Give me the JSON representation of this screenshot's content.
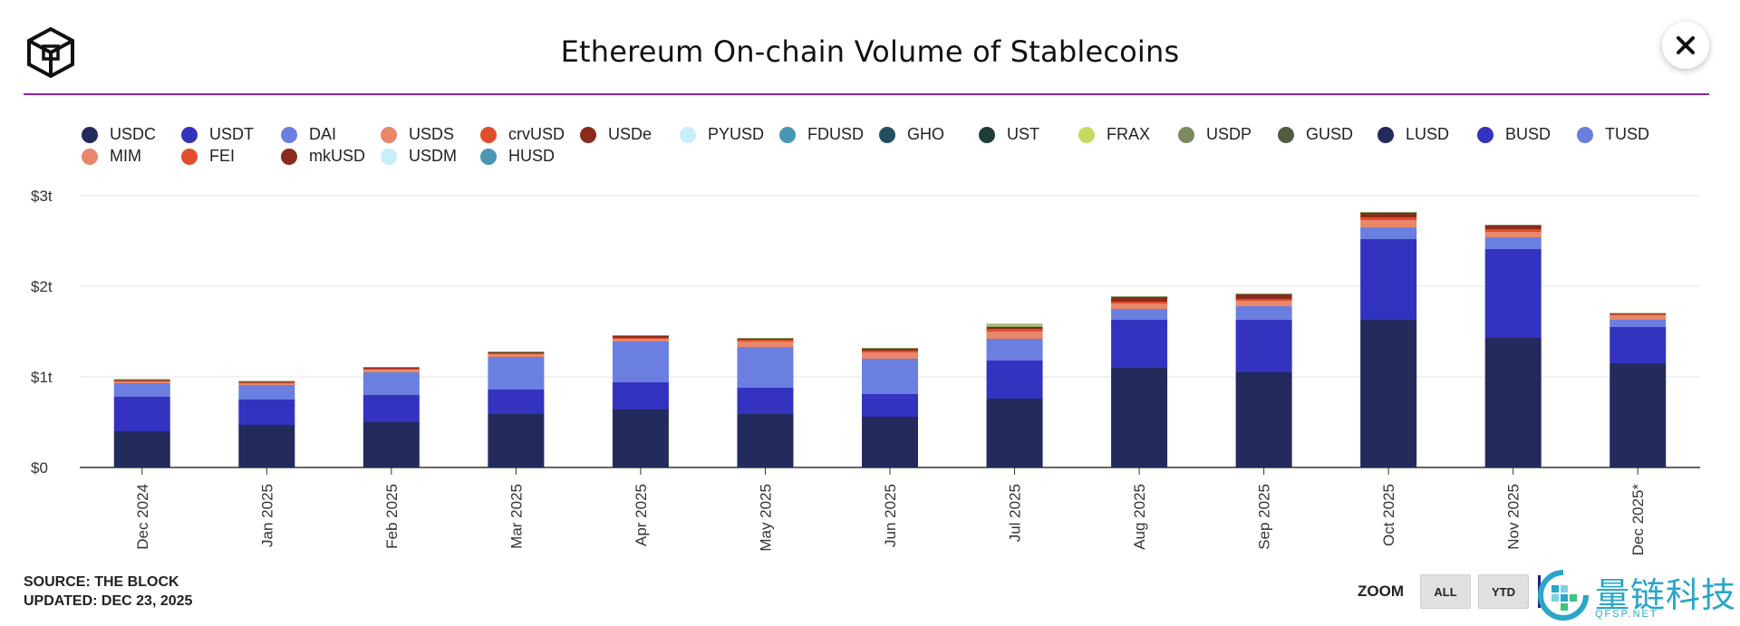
{
  "header": {
    "title": "Ethereum On-chain Volume of Stablecoins",
    "close_label": "✕"
  },
  "legend": [
    {
      "name": "USDC",
      "color": "#232a5c"
    },
    {
      "name": "USDT",
      "color": "#3333c0"
    },
    {
      "name": "DAI",
      "color": "#6a7fe0"
    },
    {
      "name": "USDS",
      "color": "#e8876a"
    },
    {
      "name": "crvUSD",
      "color": "#e04e2c"
    },
    {
      "name": "USDe",
      "color": "#8a2a1c"
    },
    {
      "name": "PYUSD",
      "color": "#c8eef6"
    },
    {
      "name": "FDUSD",
      "color": "#4a97b4"
    },
    {
      "name": "GHO",
      "color": "#23505e"
    },
    {
      "name": "UST",
      "color": "#1f3d38"
    },
    {
      "name": "FRAX",
      "color": "#c2dc60"
    },
    {
      "name": "USDP",
      "color": "#7a8a5c"
    },
    {
      "name": "GUSD",
      "color": "#525c40"
    },
    {
      "name": "LUSD",
      "color": "#232a5c"
    },
    {
      "name": "BUSD",
      "color": "#3333c0"
    },
    {
      "name": "TUSD",
      "color": "#6a7fe0"
    },
    {
      "name": "MIM",
      "color": "#e8876a"
    },
    {
      "name": "FEI",
      "color": "#e04e2c"
    },
    {
      "name": "mkUSD",
      "color": "#8a2a1c"
    },
    {
      "name": "USDM",
      "color": "#c8eef6"
    },
    {
      "name": "HUSD",
      "color": "#4a97b4"
    }
  ],
  "chart_data": {
    "type": "bar",
    "stacked": true,
    "title": "Ethereum On-chain Volume of Stablecoins",
    "xlabel": "",
    "ylabel": "",
    "ylim": [
      0,
      3
    ],
    "y_ticks": [
      "$0",
      "$1t",
      "$2t",
      "$3t"
    ],
    "y_tick_values": [
      0,
      1,
      2,
      3
    ],
    "y_unit": "trillion USD",
    "grid": true,
    "legend_position": "top",
    "categories": [
      "Dec 2024",
      "Jan 2025",
      "Feb 2025",
      "Mar 2025",
      "Apr 2025",
      "May 2025",
      "Jun 2025",
      "Jul 2025",
      "Aug 2025",
      "Sep 2025",
      "Oct 2025",
      "Nov 2025",
      "Dec 2025*"
    ],
    "series": [
      {
        "name": "USDC",
        "color": "#232a5c",
        "values": [
          0.4,
          0.47,
          0.5,
          0.59,
          0.64,
          0.59,
          0.56,
          0.76,
          1.1,
          1.05,
          1.63,
          1.43,
          1.15
        ]
      },
      {
        "name": "USDT",
        "color": "#3333c0",
        "values": [
          0.38,
          0.28,
          0.3,
          0.27,
          0.3,
          0.29,
          0.25,
          0.42,
          0.53,
          0.58,
          0.89,
          0.98,
          0.4
        ]
      },
      {
        "name": "DAI",
        "color": "#6a7fe0",
        "values": [
          0.15,
          0.16,
          0.25,
          0.36,
          0.45,
          0.45,
          0.39,
          0.24,
          0.12,
          0.15,
          0.13,
          0.13,
          0.08
        ]
      },
      {
        "name": "USDS",
        "color": "#e8876a",
        "values": [
          0.02,
          0.02,
          0.03,
          0.03,
          0.03,
          0.06,
          0.07,
          0.08,
          0.06,
          0.06,
          0.08,
          0.06,
          0.05
        ]
      },
      {
        "name": "crvUSD",
        "color": "#e04e2c",
        "values": [
          0.005,
          0.005,
          0.01,
          0.01,
          0.01,
          0.02,
          0.02,
          0.03,
          0.02,
          0.02,
          0.03,
          0.03,
          0.01
        ]
      },
      {
        "name": "USDe",
        "color": "#8a2a1c",
        "values": [
          0.01,
          0.01,
          0.01,
          0.01,
          0.02,
          0.01,
          0.02,
          0.02,
          0.05,
          0.05,
          0.05,
          0.04,
          0.01
        ]
      },
      {
        "name": "GHO",
        "color": "#23505e",
        "values": [
          0.005,
          0.005,
          0.005,
          0.005,
          0.005,
          0.005,
          0.005,
          0.005,
          0.005,
          0.005,
          0.005,
          0.005,
          0.002
        ]
      },
      {
        "name": "FRAX",
        "color": "#c2dc60",
        "values": [
          0.002,
          0.002,
          0.002,
          0.002,
          0.002,
          0.002,
          0.002,
          0.02,
          0.002,
          0.002,
          0.002,
          0.002,
          0.001
        ]
      },
      {
        "name": "USDP",
        "color": "#7a8a5c",
        "values": [
          0.003,
          0.003,
          0.003,
          0.003,
          0.003,
          0.003,
          0.003,
          0.01,
          0.003,
          0.003,
          0.003,
          0.003,
          0.002
        ]
      }
    ]
  },
  "footer": {
    "source": "SOURCE: THE BLOCK",
    "updated": "UPDATED: DEC 23, 2025",
    "zoom_label": "ZOOM",
    "zoom_buttons": [
      "ALL",
      "YTD"
    ]
  },
  "watermark": {
    "text": "量链科技",
    "url": "QFSP.NET",
    "color": "#2aa6c8"
  }
}
